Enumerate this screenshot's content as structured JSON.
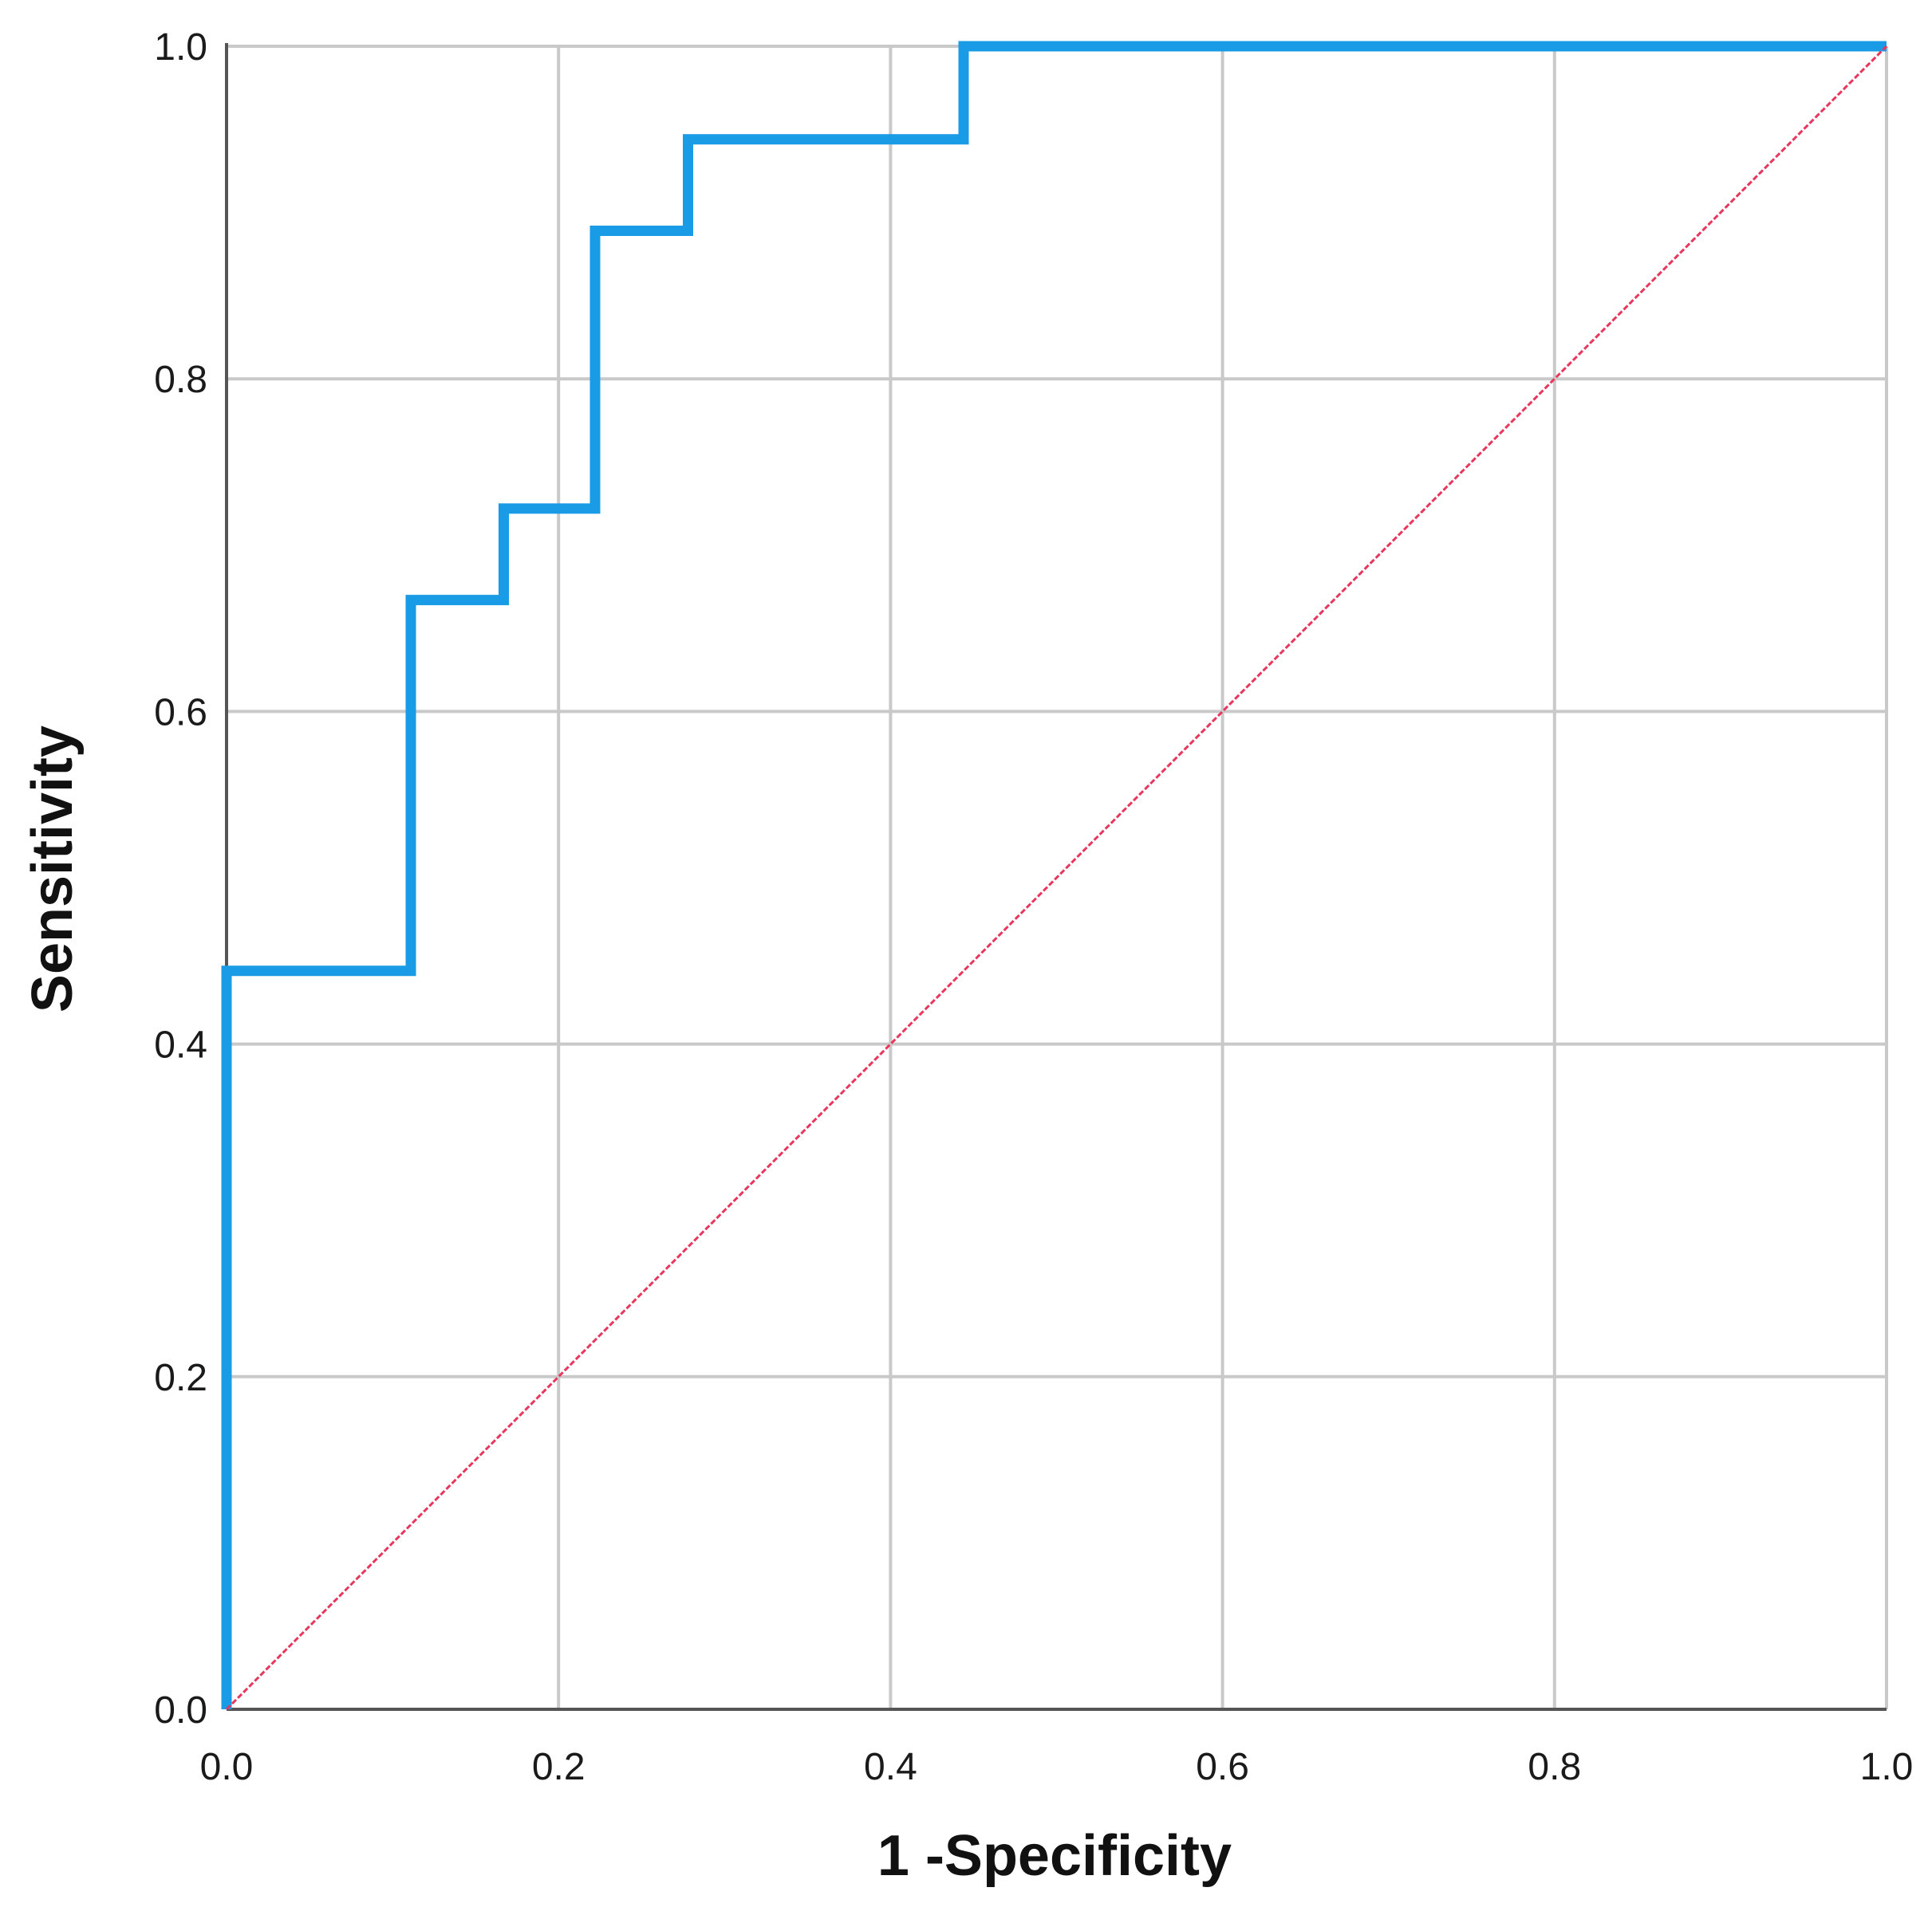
{
  "chart_data": {
    "type": "line",
    "title": "",
    "xlabel": "1 -Specificity",
    "ylabel": "Sensitivity",
    "xlim": [
      0,
      1
    ],
    "ylim": [
      0,
      1
    ],
    "xticks": [
      "0.0",
      "0.2",
      "0.4",
      "0.6",
      "0.8",
      "1.0"
    ],
    "yticks": [
      "0.0",
      "0.2",
      "0.4",
      "0.6",
      "0.8",
      "1.0"
    ],
    "grid": true,
    "series": [
      {
        "color": "#1a9be6",
        "style": "step",
        "points": [
          [
            0.0,
            0.0
          ],
          [
            0.0,
            0.444
          ],
          [
            0.111,
            0.444
          ],
          [
            0.111,
            0.667
          ],
          [
            0.167,
            0.667
          ],
          [
            0.167,
            0.722
          ],
          [
            0.222,
            0.722
          ],
          [
            0.222,
            0.889
          ],
          [
            0.278,
            0.889
          ],
          [
            0.278,
            0.944
          ],
          [
            0.444,
            0.944
          ],
          [
            0.444,
            1.0
          ],
          [
            1.0,
            1.0
          ]
        ]
      },
      {
        "color": "#e8365d",
        "style": "reference-diagonal",
        "points": [
          [
            0.0,
            0.0
          ],
          [
            1.0,
            1.0
          ]
        ]
      }
    ]
  }
}
